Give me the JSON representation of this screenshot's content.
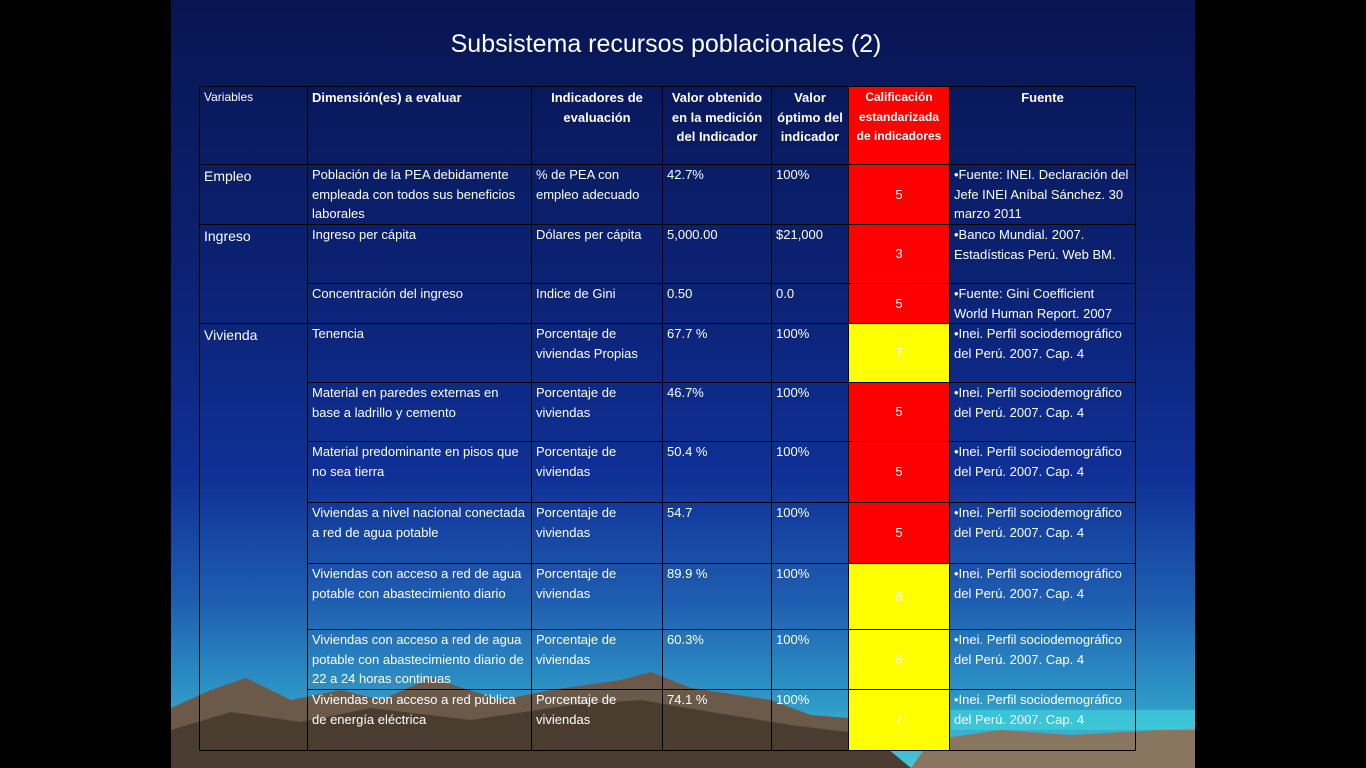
{
  "title": "Subsistema recursos poblacionales (2)",
  "table": {
    "header": [
      "Variables",
      "Dimensión(es) a evaluar",
      "Indicadores de evaluación",
      "Valor obtenido en la medición del Indicador",
      "Valor óptimo del indicador",
      "Calificación estandarizada de indicadores",
      "Fuente"
    ],
    "header_score_color": "#ff0000",
    "groups": [
      {
        "variable": "Empleo",
        "rows": [
          {
            "dimension": "Población de la PEA debidamente empleada con todos sus beneficios laborales",
            "indicator": "% de PEA con empleo adecuado",
            "value": "42.7%",
            "optimum": "100%",
            "score": 5,
            "score_color": "#ff0000",
            "source": "•Fuente: INEI.  Declaración del Jefe INEI  Aníbal Sánchez. 30 marzo 2011"
          }
        ]
      },
      {
        "variable": "Ingreso",
        "rows": [
          {
            "dimension": "Ingreso per cápita",
            "indicator": "Dólares per cápita",
            "value": "5,000.00",
            "optimum": "$21,000",
            "score": 3,
            "score_color": "#ff0000",
            "source": "•Banco  Mundial. 2007. Estadísticas Perú. Web BM."
          },
          {
            "dimension": "Concentración del ingreso",
            "indicator": "Indice de Gini",
            "value": "0.50",
            "optimum": "0.0",
            "score": 5,
            "score_color": "#ff0000",
            "source": "•Fuente: Gini Coefficient World Human Report. 2007"
          }
        ]
      },
      {
        "variable": "Vivienda",
        "rows": [
          {
            "dimension": "Tenencia",
            "indicator": "Porcentaje de viviendas Propias",
            "value": "67.7 %",
            "optimum": "100%",
            "score": 7,
            "score_color": "#ffff00",
            "source": "•Inei. Perfil sociodemográfico del Perú. 2007. Cap. 4"
          },
          {
            "dimension": "Material en paredes externas en base a ladrillo y cemento",
            "indicator": "Porcentaje de viviendas",
            "value": "46.7%",
            "optimum": "100%",
            "score": 5,
            "score_color": "#ff0000",
            "source": "•Inei. Perfil sociodemográfico del Perú. 2007. Cap. 4"
          },
          {
            "dimension": "Material predominante en pisos que no sea tierra",
            "indicator": "Porcentaje de viviendas",
            "value": "50.4 %",
            "optimum": "100%",
            "score": 5,
            "score_color": "#ff0000",
            "source": "•Inei. Perfil sociodemográfico del Perú. 2007. Cap. 4"
          },
          {
            "dimension": "Viviendas a nivel nacional conectada a red de agua potable",
            "indicator": "Porcentaje de viviendas",
            "value": "54.7",
            "optimum": "100%",
            "score": 5,
            "score_color": "#ff0000",
            "source": "•Inei. Perfil sociodemográfico del Perú. 2007. Cap. 4"
          },
          {
            "dimension": "Viviendas con acceso a red de agua potable con abastecimiento diario",
            "indicator": "Porcentaje de viviendas",
            "value": "89.9 %",
            "optimum": "100%",
            "score": 8,
            "score_color": "#ffff00",
            "source": "•Inei. Perfil sociodemográfico del Perú. 2007. Cap. 4"
          },
          {
            "dimension": "Viviendas con acceso a red de agua potable con abastecimiento diario de 22 a 24 horas continuas",
            "indicator": "Porcentaje de viviendas",
            "value": "60.3%",
            "optimum": "100%",
            "score": 6,
            "score_color": "#ffff00",
            "source": "•Inei. Perfil sociodemográfico del Perú. 2007. Cap. 4"
          },
          {
            "dimension": "Viviendas con acceso a red pública de energía eléctrica",
            "indicator": "Porcentaje de viviendas",
            "value": "74.1 %",
            "optimum": "100%",
            "score": 7,
            "score_color": "#ffff00",
            "source": "•Inei. Perfil sociodemográfico del Perú. 2007. Cap. 4"
          }
        ]
      }
    ]
  }
}
